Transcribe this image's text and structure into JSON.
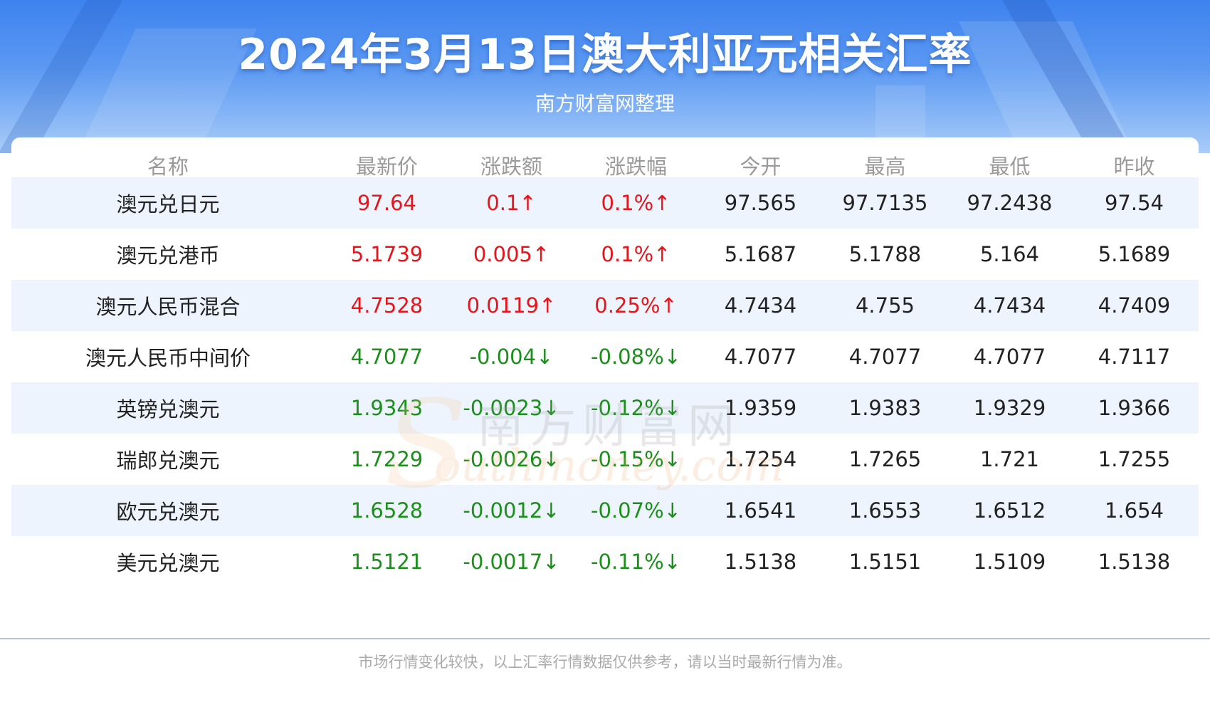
{
  "title": "2024年3月13日澳大利亚元相关汇率",
  "subtitle": "南方财富网整理",
  "colors": {
    "up": "#e8141a",
    "down": "#1a8f1a",
    "header_bg": "#3d82ee",
    "stripe": "#eef4fd"
  },
  "columns": [
    "名称",
    "最新价",
    "涨跌额",
    "涨跌幅",
    "今开",
    "最高",
    "最低",
    "昨收"
  ],
  "rows": [
    {
      "trend": "up",
      "cells": [
        "澳元兑日元",
        "97.64",
        "0.1↑",
        "0.1%↑",
        "97.565",
        "97.7135",
        "97.2438",
        "97.54"
      ]
    },
    {
      "trend": "up",
      "cells": [
        "澳元兑港币",
        "5.1739",
        "0.005↑",
        "0.1%↑",
        "5.1687",
        "5.1788",
        "5.164",
        "5.1689"
      ]
    },
    {
      "trend": "up",
      "cells": [
        "澳元人民币混合",
        "4.7528",
        "0.0119↑",
        "0.25%↑",
        "4.7434",
        "4.755",
        "4.7434",
        "4.7409"
      ]
    },
    {
      "trend": "down",
      "cells": [
        "澳元人民币中间价",
        "4.7077",
        "-0.004↓",
        "-0.08%↓",
        "4.7077",
        "4.7077",
        "4.7077",
        "4.7117"
      ]
    },
    {
      "trend": "down",
      "cells": [
        "英镑兑澳元",
        "1.9343",
        "-0.0023↓",
        "-0.12%↓",
        "1.9359",
        "1.9383",
        "1.9329",
        "1.9366"
      ]
    },
    {
      "trend": "down",
      "cells": [
        "瑞郎兑澳元",
        "1.7229",
        "-0.0026↓",
        "-0.15%↓",
        "1.7254",
        "1.7265",
        "1.721",
        "1.7255"
      ]
    },
    {
      "trend": "down",
      "cells": [
        "欧元兑澳元",
        "1.6528",
        "-0.0012↓",
        "-0.07%↓",
        "1.6541",
        "1.6553",
        "1.6512",
        "1.654"
      ]
    },
    {
      "trend": "down",
      "cells": [
        "美元兑澳元",
        "1.5121",
        "-0.0017↓",
        "-0.11%↓",
        "1.5138",
        "1.5151",
        "1.5109",
        "1.5138"
      ]
    }
  ],
  "watermark": {
    "cn": "南方财富网",
    "en": "outhmoney.com",
    "s": "S"
  },
  "footer": "市场行情变化较快，以上汇率行情数据仅供参考，请以当时最新行情为准。"
}
